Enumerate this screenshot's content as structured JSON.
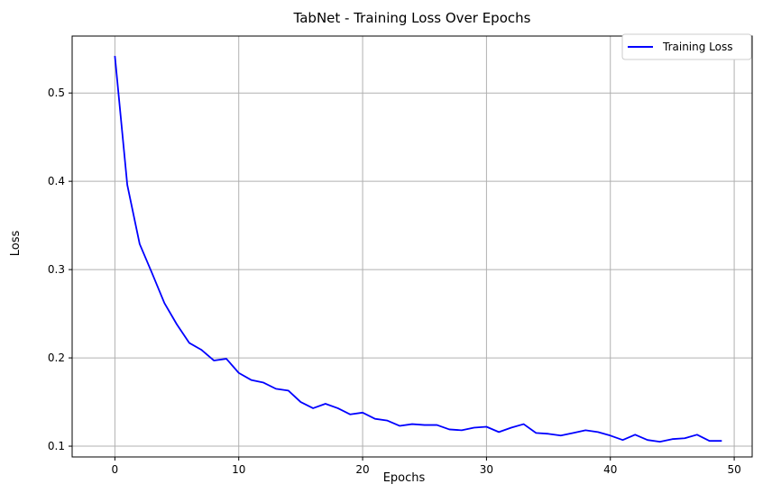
{
  "chart_data": {
    "type": "line",
    "title": "TabNet - Training Loss Over Epochs",
    "xlabel": "Epochs",
    "ylabel": "Loss",
    "xlim": [
      -3.45,
      51.45
    ],
    "ylim": [
      0.0878,
      0.5645
    ],
    "xticks": [
      0,
      10,
      20,
      30,
      40,
      50
    ],
    "yticks": [
      0.1,
      0.2,
      0.3,
      0.4,
      0.5
    ],
    "xtick_labels": [
      "0",
      "10",
      "20",
      "30",
      "40",
      "50"
    ],
    "ytick_labels": [
      "0.1",
      "0.2",
      "0.3",
      "0.4",
      "0.5"
    ],
    "grid": true,
    "legend_position": "top-right",
    "series": [
      {
        "name": "Training Loss",
        "color": "#0000ff",
        "x": [
          0,
          1,
          2,
          3,
          4,
          5,
          6,
          7,
          8,
          9,
          10,
          11,
          12,
          13,
          14,
          15,
          16,
          17,
          18,
          19,
          20,
          21,
          22,
          23,
          24,
          25,
          26,
          27,
          28,
          29,
          30,
          31,
          32,
          33,
          34,
          35,
          36,
          37,
          38,
          39,
          40,
          41,
          42,
          43,
          44,
          45,
          46,
          47,
          48,
          49
        ],
        "values": [
          0.542,
          0.396,
          0.329,
          0.296,
          0.262,
          0.238,
          0.217,
          0.209,
          0.197,
          0.199,
          0.183,
          0.175,
          0.172,
          0.165,
          0.163,
          0.15,
          0.143,
          0.148,
          0.143,
          0.136,
          0.138,
          0.131,
          0.129,
          0.123,
          0.125,
          0.124,
          0.124,
          0.119,
          0.118,
          0.121,
          0.122,
          0.116,
          0.121,
          0.125,
          0.115,
          0.114,
          0.112,
          0.115,
          0.118,
          0.116,
          0.112,
          0.107,
          0.113,
          0.107,
          0.105,
          0.108,
          0.109,
          0.113,
          0.106,
          0.106
        ]
      }
    ]
  }
}
